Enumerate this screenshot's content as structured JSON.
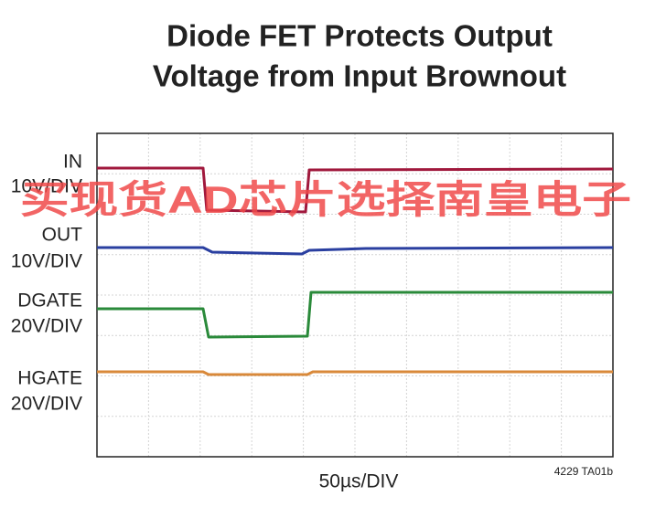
{
  "title_lines": [
    "Diode FET Protects Output",
    "Voltage from Input Brownout"
  ],
  "channels": [
    {
      "name": "IN",
      "scale": "10V/DIV"
    },
    {
      "name": "OUT",
      "scale": "10V/DIV"
    },
    {
      "name": "DGATE",
      "scale": "20V/DIV"
    },
    {
      "name": "HGATE",
      "scale": "20V/DIV"
    }
  ],
  "time_scale": "50µs/DIV",
  "figure_id": "4229 TA01b",
  "watermark": "买现货AD芯片选择南皇电子"
}
